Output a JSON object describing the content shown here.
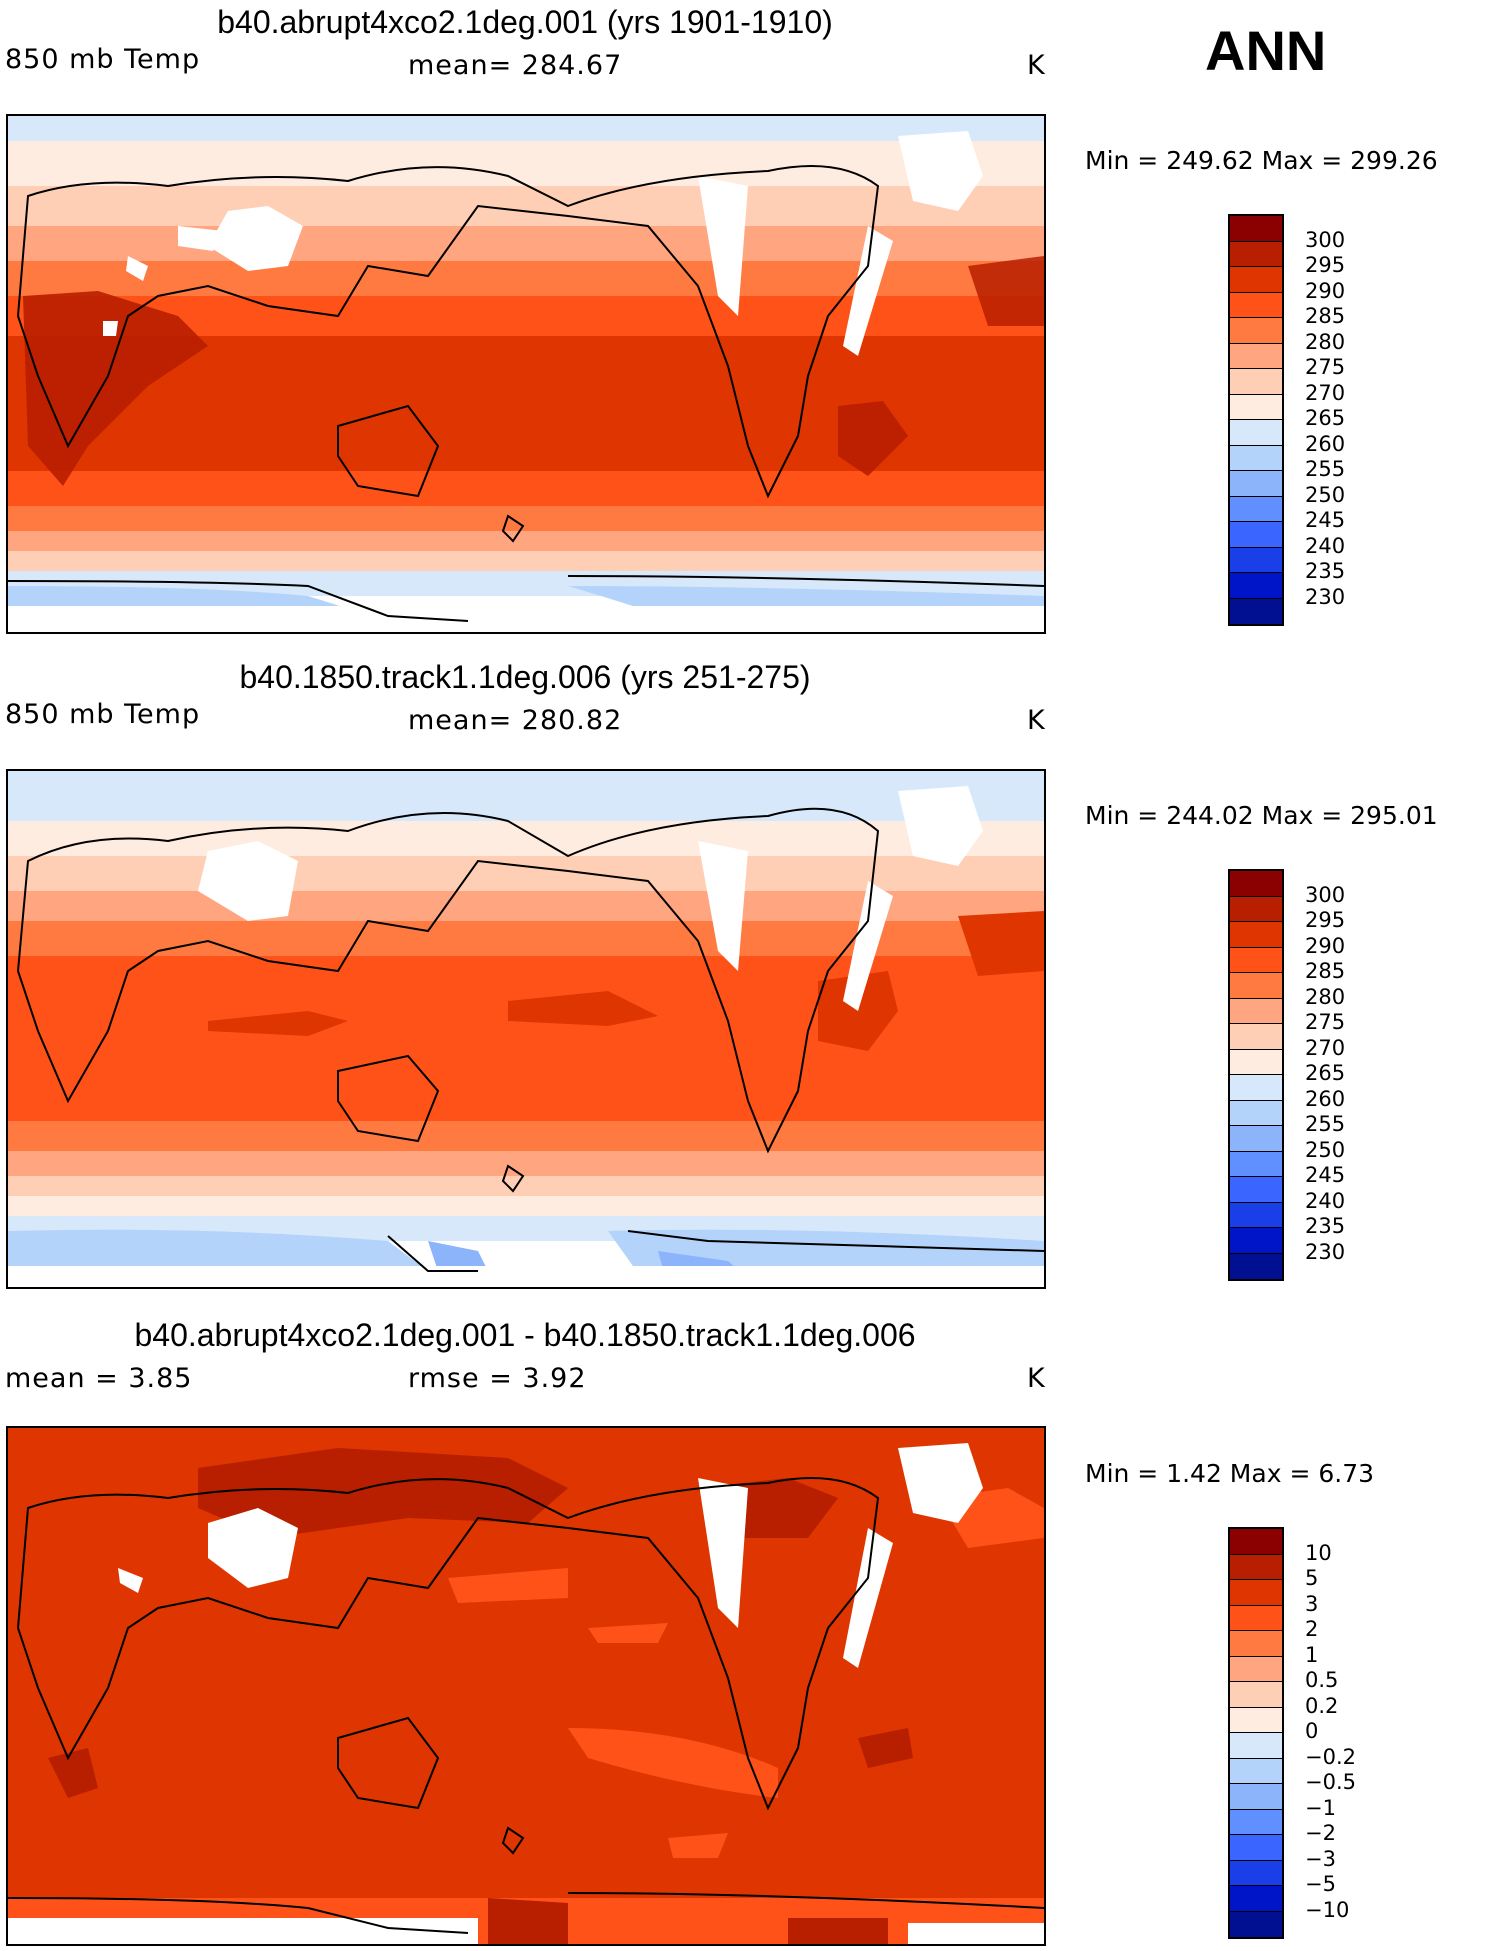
{
  "season": "ANN",
  "panels": [
    {
      "title": "b40.abrupt4xco2.1deg.001 (yrs 1901-1910)",
      "left_label": "850 mb Temp",
      "center_label": "mean=  284.67",
      "unit": "K",
      "minmax": "Min =  249.62  Max =  299.26",
      "colorbar": {
        "labels": [
          "300",
          "295",
          "290",
          "285",
          "280",
          "275",
          "270",
          "265",
          "260",
          "255",
          "250",
          "245",
          "240",
          "235",
          "230"
        ],
        "colors": [
          "#8b0000",
          "#b81e00",
          "#df3500",
          "#ff5218",
          "#ff7a40",
          "#ffa580",
          "#ffcfb5",
          "#ffece0",
          "#d7e8fb",
          "#b4d3fb",
          "#8cb4fb",
          "#6090ff",
          "#3a66ff",
          "#1a3ee8",
          "#0015c8",
          "#001090"
        ]
      }
    },
    {
      "title": "b40.1850.track1.1deg.006 (yrs 251-275)",
      "left_label": "850 mb Temp",
      "center_label": "mean=  280.82",
      "unit": "K",
      "minmax": "Min =  244.02  Max =  295.01",
      "colorbar": {
        "labels": [
          "300",
          "295",
          "290",
          "285",
          "280",
          "275",
          "270",
          "265",
          "260",
          "255",
          "250",
          "245",
          "240",
          "235",
          "230"
        ],
        "colors": [
          "#8b0000",
          "#b81e00",
          "#df3500",
          "#ff5218",
          "#ff7a40",
          "#ffa580",
          "#ffcfb5",
          "#ffece0",
          "#d7e8fb",
          "#b4d3fb",
          "#8cb4fb",
          "#6090ff",
          "#3a66ff",
          "#1a3ee8",
          "#0015c8",
          "#001090"
        ]
      }
    },
    {
      "title": "b40.abrupt4xco2.1deg.001 - b40.1850.track1.1deg.006",
      "left_label": "mean =    3.85",
      "center_label": "rmse =    3.92",
      "unit": "K",
      "minmax": "Min =    1.42  Max =    6.73",
      "colorbar": {
        "labels": [
          "10",
          "5",
          "3",
          "2",
          "1",
          "0.5",
          "0.2",
          "0",
          "−0.2",
          "−0.5",
          "−1",
          "−2",
          "−3",
          "−5",
          "−10"
        ],
        "colors": [
          "#8b0000",
          "#b81e00",
          "#df3500",
          "#ff5218",
          "#ff7a40",
          "#ffa580",
          "#ffcfb5",
          "#ffece0",
          "#d7e8fb",
          "#b4d3fb",
          "#8cb4fb",
          "#6090ff",
          "#3a66ff",
          "#1a3ee8",
          "#0015c8",
          "#001090"
        ]
      }
    }
  ]
}
